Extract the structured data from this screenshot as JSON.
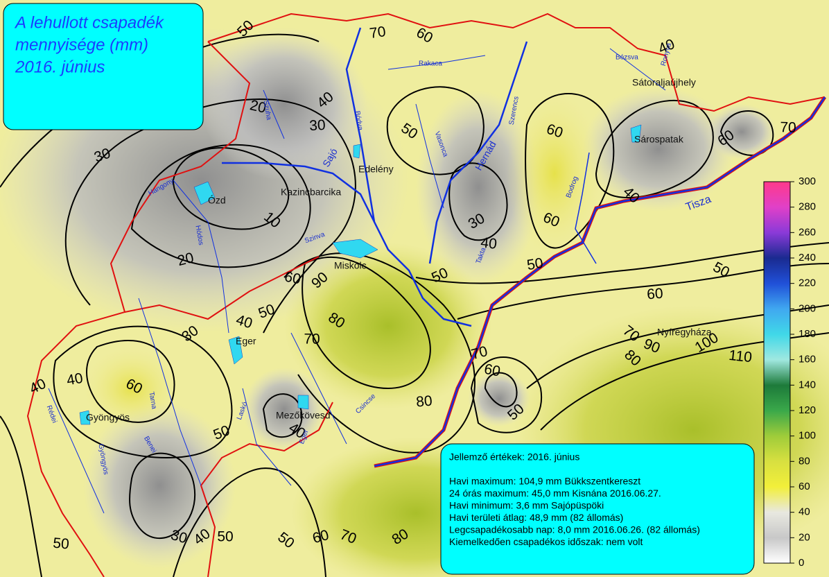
{
  "title": [
    "A lehullott csapadék",
    "mennyisége (mm)",
    "2016. június"
  ],
  "info": {
    "heading": "Jellemző értékek: 2016. június",
    "lines": [
      "Havi maximum: 104,9 mm Bükkszentkereszt",
      "24 órás maximum: 45,0 mm Kisnána 2016.06.27.",
      "Havi minimum:  3,6 mm Sajópüspöki",
      "Havi területi átlag: 48,9 mm (82 állomás)",
      "Legcsapadékosabb nap: 8,0 mm 2016.06.26. (82 állomás)",
      "Kiemelkedően csapadékos időszak: nem volt"
    ]
  },
  "legend": {
    "ticks": [
      0,
      20,
      40,
      60,
      80,
      100,
      120,
      140,
      160,
      180,
      200,
      220,
      240,
      260,
      280,
      300
    ]
  },
  "places": [
    "Sátoraljaújhely",
    "Sárospatak",
    "Edelény",
    "Kazincbarcika",
    "Ózd",
    "Miskolc",
    "Eger",
    "Gyöngyös",
    "Mezőkövesd",
    "Nyíregyháza"
  ],
  "rivers": [
    "Sajó",
    "Hernád",
    "Tisza",
    "Bódva",
    "Rakaca",
    "Vasonca",
    "Bózsva",
    "Ronyva",
    "Takta",
    "Bodrog",
    "Szerencs",
    "Tarna",
    "Laskó",
    "Csincse",
    "Szuha",
    "Hangony",
    "Hódos",
    "Szinva",
    "Rédei",
    "Gyöngyös",
    "Benei",
    "Eger"
  ],
  "contour_labels": [
    50,
    70,
    60,
    40,
    20,
    40,
    30,
    50,
    30,
    60,
    60,
    70,
    10,
    20,
    60,
    30,
    40,
    40,
    50,
    50,
    50,
    60,
    90,
    60,
    80,
    50,
    40,
    30,
    70,
    70,
    70,
    90,
    100,
    110,
    80,
    40,
    60,
    40,
    60,
    50,
    80,
    40,
    50,
    30,
    40,
    50,
    50,
    60,
    70,
    80,
    50
  ]
}
